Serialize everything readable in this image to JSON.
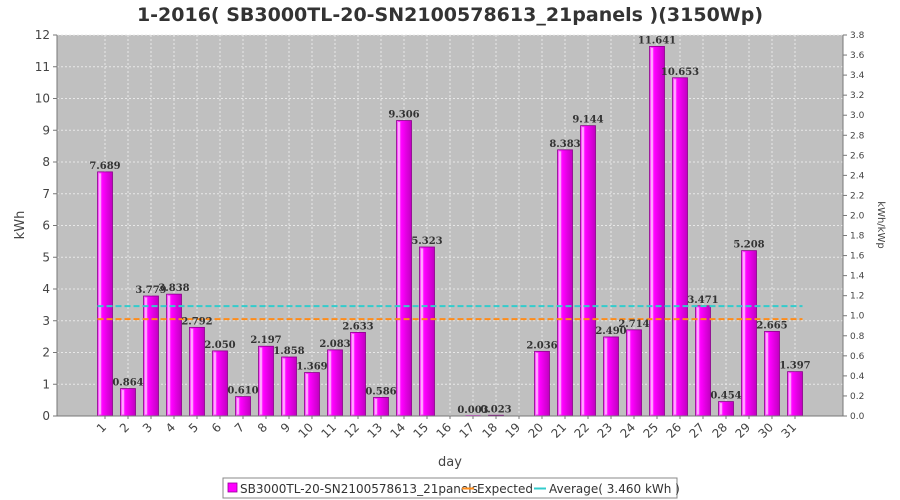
{
  "chart_data": {
    "type": "bar",
    "title": "1-2016( SB3000TL-20-SN2100578613_21panels )(3150Wp)",
    "xlabel": "day",
    "ylabel": "kWh",
    "y2label": "kWh/kWp",
    "ylim": [
      0,
      12
    ],
    "y2lim": [
      0,
      3.8
    ],
    "yticks": [
      0,
      1,
      2,
      3,
      4,
      5,
      6,
      7,
      8,
      9,
      10,
      11,
      12
    ],
    "y2ticks": [
      "0.0",
      "0.2",
      "0.4",
      "0.6",
      "0.8",
      "1.0",
      "1.2",
      "1.4",
      "1.6",
      "1.8",
      "2.0",
      "2.2",
      "2.4",
      "2.6",
      "2.8",
      "3.0",
      "3.2",
      "3.4",
      "3.6",
      "3.8"
    ],
    "categories": [
      "1",
      "2",
      "3",
      "4",
      "5",
      "6",
      "7",
      "8",
      "9",
      "10",
      "11",
      "12",
      "13",
      "14",
      "15",
      "16",
      "17",
      "18",
      "19",
      "20",
      "21",
      "22",
      "23",
      "24",
      "25",
      "26",
      "27",
      "28",
      "29",
      "30",
      "31"
    ],
    "values": [
      7.689,
      0.864,
      3.779,
      3.838,
      2.792,
      2.05,
      0.61,
      2.197,
      1.858,
      1.369,
      2.083,
      2.633,
      0.586,
      9.306,
      5.323,
      0,
      0.003,
      0.023,
      0,
      2.036,
      8.383,
      9.144,
      2.49,
      2.714,
      11.641,
      10.653,
      3.471,
      0.454,
      5.208,
      2.665,
      1.397
    ],
    "data_labels": [
      "7.689",
      "0.864",
      "3.779",
      "3.838",
      "2.792",
      "2.050",
      "0.610",
      "2.197",
      "1.858",
      "1.369",
      "2.083",
      "2.633",
      "0.586",
      "9.306",
      "5.323",
      "",
      "0.003",
      "0.023",
      "",
      "2.036",
      "8.383",
      "9.144",
      "2.490",
      "2.714",
      "11.641",
      "10.653",
      "3.471",
      "0.454",
      "5.208",
      "2.665",
      "1.397"
    ],
    "expected": 3.05,
    "average": 3.46,
    "grid": true,
    "legend_position": "bottom",
    "legend": [
      {
        "name": "SB3000TL-20-SN2100578613_21panels",
        "kind": "bar"
      },
      {
        "name": "Expected",
        "kind": "line"
      },
      {
        "name": "Average( 3.460 kWh )",
        "kind": "line"
      }
    ],
    "colors": {
      "bar": "#ff00ff",
      "bar_edge": "#9a009a",
      "expected": "#ff8c1a",
      "average": "#33cccc",
      "plot_bg": "#c0c0c0",
      "grid": "#e6e6e6"
    }
  }
}
